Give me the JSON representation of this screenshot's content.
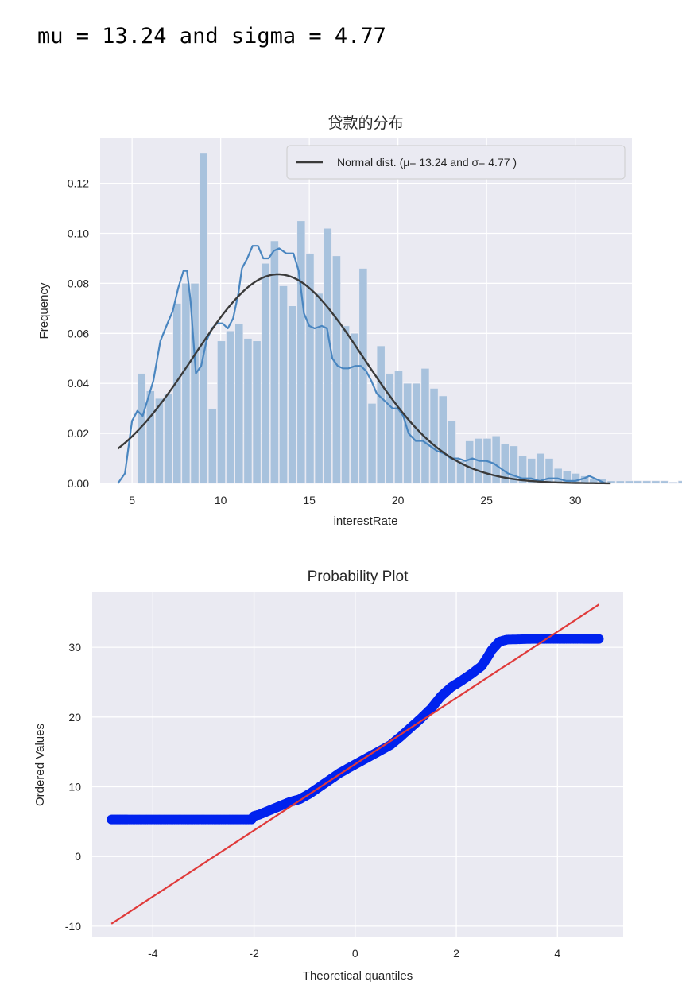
{
  "output_line": "mu = 13.24 and sigma = 4.77",
  "chart_data": [
    {
      "type": "bar",
      "title": "贷款的分布",
      "xlabel": "interestRate",
      "ylabel": "Frequency",
      "xlim": [
        3.2,
        33.2
      ],
      "ylim": [
        0,
        0.138
      ],
      "xticks": [
        5,
        10,
        15,
        20,
        25,
        30
      ],
      "yticks": [
        0.0,
        0.02,
        0.04,
        0.06,
        0.08,
        0.1,
        0.12
      ],
      "ytick_labels": [
        "0.00",
        "0.02",
        "0.04",
        "0.06",
        "0.08",
        "0.10",
        "0.12"
      ],
      "grid": true,
      "legend": {
        "position": "top-right",
        "entries": [
          "Normal dist. (μ=  13.24 and σ=  4.77 )"
        ]
      },
      "histogram": {
        "bin_start": 5.31,
        "bin_width": 0.5,
        "values": [
          0.044,
          0.037,
          0.034,
          0.036,
          0.072,
          0.08,
          0.08,
          0.132,
          0.03,
          0.057,
          0.061,
          0.064,
          0.058,
          0.057,
          0.088,
          0.097,
          0.079,
          0.071,
          0.105,
          0.092,
          0.076,
          0.102,
          0.091,
          0.063,
          0.06,
          0.086,
          0.032,
          0.055,
          0.044,
          0.045,
          0.04,
          0.04,
          0.046,
          0.038,
          0.035,
          0.025,
          0.009,
          0.017,
          0.018,
          0.018,
          0.019,
          0.016,
          0.015,
          0.011,
          0.01,
          0.012,
          0.01,
          0.006,
          0.005,
          0.004,
          0.003,
          0.002,
          0.002,
          0.001,
          0.001,
          0.001,
          0.001,
          0.001,
          0.001,
          0.001,
          0.0005,
          0.001,
          0.001,
          0.001,
          0.001,
          0.001,
          0.001,
          0.001,
          0.001,
          0.002,
          0.003,
          0.001
        ]
      },
      "series": [
        {
          "name": "Normal dist. (μ=  13.24 and σ=  4.77 )",
          "type": "normal_pdf",
          "mu": 13.24,
          "sigma": 4.77,
          "x_range": [
            4.2,
            32.0
          ],
          "color": "#3a3a3a"
        },
        {
          "type": "kde",
          "color": "#4a86c0",
          "x": [
            4.2,
            4.6,
            5.0,
            5.3,
            5.6,
            5.9,
            6.2,
            6.6,
            7.0,
            7.3,
            7.6,
            7.9,
            8.1,
            8.3,
            8.6,
            8.9,
            9.2,
            9.5,
            9.8,
            10.1,
            10.4,
            10.7,
            11.0,
            11.2,
            11.5,
            11.8,
            12.1,
            12.4,
            12.7,
            13.0,
            13.3,
            13.7,
            14.1,
            14.4,
            14.7,
            15.0,
            15.3,
            15.7,
            16.0,
            16.3,
            16.6,
            16.9,
            17.2,
            17.6,
            17.9,
            18.2,
            18.5,
            18.8,
            19.1,
            19.4,
            19.7,
            20.0,
            20.3,
            20.6,
            21.0,
            21.4,
            21.8,
            22.2,
            22.6,
            23.0,
            23.4,
            23.8,
            24.2,
            24.6,
            25.0,
            25.4,
            25.8,
            26.2,
            26.6,
            27.0,
            27.5,
            28.0,
            28.5,
            29.0,
            29.5,
            30.0,
            30.5,
            30.8,
            31.1,
            31.4,
            31.7
          ],
          "y": [
            0.0,
            0.004,
            0.025,
            0.029,
            0.027,
            0.034,
            0.041,
            0.057,
            0.064,
            0.069,
            0.078,
            0.085,
            0.085,
            0.073,
            0.044,
            0.047,
            0.057,
            0.062,
            0.064,
            0.064,
            0.062,
            0.066,
            0.076,
            0.086,
            0.09,
            0.095,
            0.095,
            0.09,
            0.09,
            0.093,
            0.094,
            0.092,
            0.092,
            0.085,
            0.068,
            0.063,
            0.062,
            0.063,
            0.062,
            0.05,
            0.047,
            0.046,
            0.046,
            0.047,
            0.047,
            0.045,
            0.041,
            0.036,
            0.034,
            0.032,
            0.03,
            0.03,
            0.027,
            0.02,
            0.017,
            0.017,
            0.015,
            0.013,
            0.012,
            0.01,
            0.01,
            0.009,
            0.01,
            0.009,
            0.009,
            0.008,
            0.006,
            0.004,
            0.003,
            0.002,
            0.002,
            0.001,
            0.002,
            0.002,
            0.001,
            0.001,
            0.002,
            0.003,
            0.002,
            0.001,
            0.0
          ]
        }
      ]
    },
    {
      "type": "scatter",
      "title": "Probability Plot",
      "xlabel": "Theoretical quantiles",
      "ylabel": "Ordered Values",
      "xlim": [
        -5.2,
        5.3
      ],
      "ylim": [
        -11.5,
        38.0
      ],
      "xticks": [
        -4,
        -2,
        0,
        2,
        4
      ],
      "yticks": [
        -10,
        0,
        10,
        20,
        30
      ],
      "grid": true,
      "series": [
        {
          "type": "scatter_curve",
          "color": "#0022ee",
          "x": [
            -4.82,
            -4.5,
            -4.0,
            -3.5,
            -3.0,
            -2.5,
            -2.05,
            -2.0,
            -1.9,
            -1.7,
            -1.5,
            -1.3,
            -1.1,
            -0.9,
            -0.7,
            -0.5,
            -0.3,
            -0.1,
            0.1,
            0.3,
            0.5,
            0.7,
            0.9,
            1.1,
            1.3,
            1.5,
            1.7,
            1.9,
            2.1,
            2.3,
            2.5,
            2.6,
            2.7,
            2.85,
            3.0,
            3.5,
            4.0,
            4.5,
            4.82
          ],
          "y": [
            5.31,
            5.31,
            5.31,
            5.31,
            5.31,
            5.31,
            5.31,
            5.8,
            6.0,
            6.6,
            7.2,
            7.8,
            8.2,
            9.0,
            10.0,
            11.0,
            12.0,
            12.8,
            13.6,
            14.4,
            15.2,
            16.0,
            17.2,
            18.5,
            19.8,
            21.2,
            23.0,
            24.3,
            25.2,
            26.2,
            27.3,
            28.4,
            29.6,
            30.8,
            31.1,
            31.2,
            31.2,
            31.2,
            31.2
          ]
        },
        {
          "type": "fit_line",
          "color": "#e03a3a",
          "slope": 4.75,
          "intercept": 13.24,
          "x_range": [
            -4.82,
            4.82
          ]
        }
      ]
    }
  ]
}
